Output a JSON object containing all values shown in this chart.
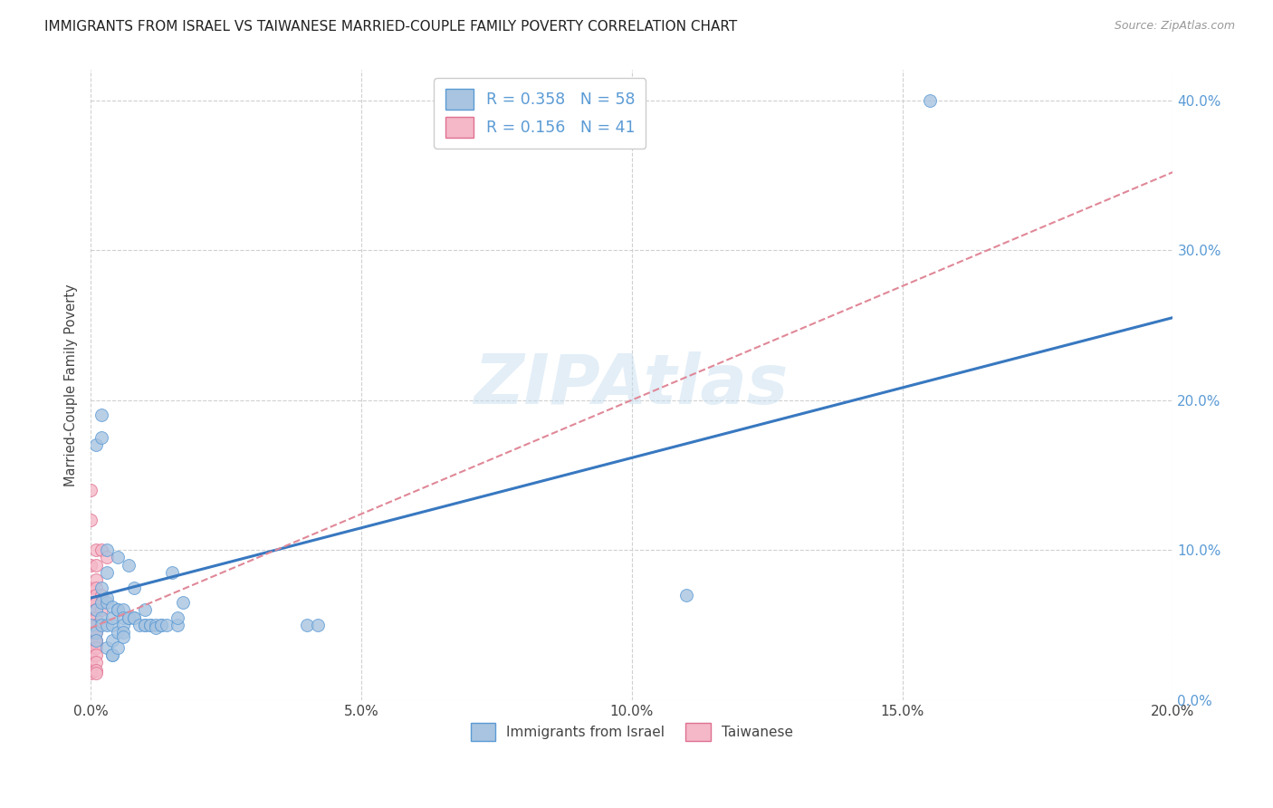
{
  "title": "IMMIGRANTS FROM ISRAEL VS TAIWANESE MARRIED-COUPLE FAMILY POVERTY CORRELATION CHART",
  "source": "Source: ZipAtlas.com",
  "ylabel_label": "Married-Couple Family Poverty",
  "legend_bottom": [
    "Immigrants from Israel",
    "Taiwanese"
  ],
  "legend_top_blue_R": "0.358",
  "legend_top_blue_N": "58",
  "legend_top_pink_R": "0.156",
  "legend_top_pink_N": "41",
  "watermark": "ZIPAtlas",
  "blue_fill": "#a8c4e0",
  "blue_edge": "#5b9bd5",
  "pink_fill": "#f4b8c8",
  "pink_edge": "#e07090",
  "blue_line_color": "#3878c0",
  "pink_line_color": "#e08898",
  "tick_color": "#5b9bd5",
  "blue_scatter": [
    [
      0.0,
      0.05
    ],
    [
      0.001,
      0.045
    ],
    [
      0.001,
      0.06
    ],
    [
      0.001,
      0.04
    ],
    [
      0.001,
      0.17
    ],
    [
      0.002,
      0.055
    ],
    [
      0.002,
      0.075
    ],
    [
      0.002,
      0.065
    ],
    [
      0.002,
      0.05
    ],
    [
      0.002,
      0.19
    ],
    [
      0.002,
      0.175
    ],
    [
      0.003,
      0.065
    ],
    [
      0.003,
      0.068
    ],
    [
      0.003,
      0.035
    ],
    [
      0.003,
      0.05
    ],
    [
      0.003,
      0.085
    ],
    [
      0.003,
      0.1
    ],
    [
      0.004,
      0.05
    ],
    [
      0.004,
      0.04
    ],
    [
      0.004,
      0.062
    ],
    [
      0.004,
      0.055
    ],
    [
      0.004,
      0.03
    ],
    [
      0.004,
      0.03
    ],
    [
      0.005,
      0.095
    ],
    [
      0.005,
      0.06
    ],
    [
      0.005,
      0.045
    ],
    [
      0.005,
      0.035
    ],
    [
      0.005,
      0.06
    ],
    [
      0.006,
      0.06
    ],
    [
      0.006,
      0.055
    ],
    [
      0.006,
      0.05
    ],
    [
      0.006,
      0.045
    ],
    [
      0.006,
      0.042
    ],
    [
      0.007,
      0.09
    ],
    [
      0.007,
      0.055
    ],
    [
      0.007,
      0.055
    ],
    [
      0.008,
      0.055
    ],
    [
      0.008,
      0.055
    ],
    [
      0.008,
      0.075
    ],
    [
      0.009,
      0.05
    ],
    [
      0.01,
      0.05
    ],
    [
      0.01,
      0.05
    ],
    [
      0.01,
      0.06
    ],
    [
      0.011,
      0.05
    ],
    [
      0.011,
      0.05
    ],
    [
      0.012,
      0.05
    ],
    [
      0.012,
      0.048
    ],
    [
      0.013,
      0.05
    ],
    [
      0.013,
      0.05
    ],
    [
      0.014,
      0.05
    ],
    [
      0.015,
      0.085
    ],
    [
      0.016,
      0.05
    ],
    [
      0.016,
      0.055
    ],
    [
      0.017,
      0.065
    ],
    [
      0.04,
      0.05
    ],
    [
      0.042,
      0.05
    ],
    [
      0.11,
      0.07
    ],
    [
      0.155,
      0.4
    ]
  ],
  "pink_scatter": [
    [
      0.0,
      0.14
    ],
    [
      0.0,
      0.12
    ],
    [
      0.0,
      0.09
    ],
    [
      0.0,
      0.075
    ],
    [
      0.0,
      0.065
    ],
    [
      0.0,
      0.06
    ],
    [
      0.0,
      0.055
    ],
    [
      0.0,
      0.05
    ],
    [
      0.0,
      0.048
    ],
    [
      0.0,
      0.045
    ],
    [
      0.0,
      0.042
    ],
    [
      0.0,
      0.04
    ],
    [
      0.0,
      0.038
    ],
    [
      0.0,
      0.035
    ],
    [
      0.0,
      0.03
    ],
    [
      0.0,
      0.025
    ],
    [
      0.0,
      0.02
    ],
    [
      0.0,
      0.018
    ],
    [
      0.001,
      0.1
    ],
    [
      0.001,
      0.09
    ],
    [
      0.001,
      0.08
    ],
    [
      0.001,
      0.075
    ],
    [
      0.001,
      0.07
    ],
    [
      0.001,
      0.065
    ],
    [
      0.001,
      0.065
    ],
    [
      0.001,
      0.06
    ],
    [
      0.001,
      0.055
    ],
    [
      0.001,
      0.05
    ],
    [
      0.001,
      0.05
    ],
    [
      0.001,
      0.045
    ],
    [
      0.001,
      0.04
    ],
    [
      0.001,
      0.038
    ],
    [
      0.001,
      0.035
    ],
    [
      0.001,
      0.03
    ],
    [
      0.001,
      0.025
    ],
    [
      0.001,
      0.02
    ],
    [
      0.001,
      0.018
    ],
    [
      0.002,
      0.1
    ],
    [
      0.002,
      0.07
    ],
    [
      0.002,
      0.06
    ],
    [
      0.003,
      0.095
    ]
  ],
  "xlim": [
    0.0,
    0.2
  ],
  "ylim": [
    0.0,
    0.42
  ],
  "xticks": [
    0.0,
    0.05,
    0.1,
    0.15,
    0.2
  ],
  "yticks": [
    0.0,
    0.1,
    0.2,
    0.3,
    0.4
  ],
  "blue_line_x0": 0.0,
  "blue_line_y0": 0.068,
  "blue_line_x1": 0.2,
  "blue_line_y1": 0.255,
  "pink_line_x0": 0.0,
  "pink_line_y0": 0.048,
  "pink_line_x1": 0.2,
  "pink_line_y1": 0.352
}
